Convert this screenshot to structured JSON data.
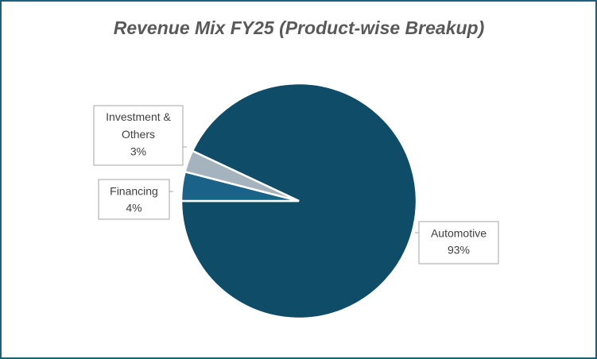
{
  "chart_data": {
    "type": "pie",
    "title": "Revenue Mix FY25 (Product-wise Breakup)",
    "categories": [
      "Automotive",
      "Financing",
      "Investment & Others"
    ],
    "values": [
      93,
      4,
      3
    ],
    "value_labels": [
      "93%",
      "4%",
      "3%"
    ],
    "colors": [
      "#0f4c68",
      "#1a6288",
      "#a5b3be"
    ]
  }
}
